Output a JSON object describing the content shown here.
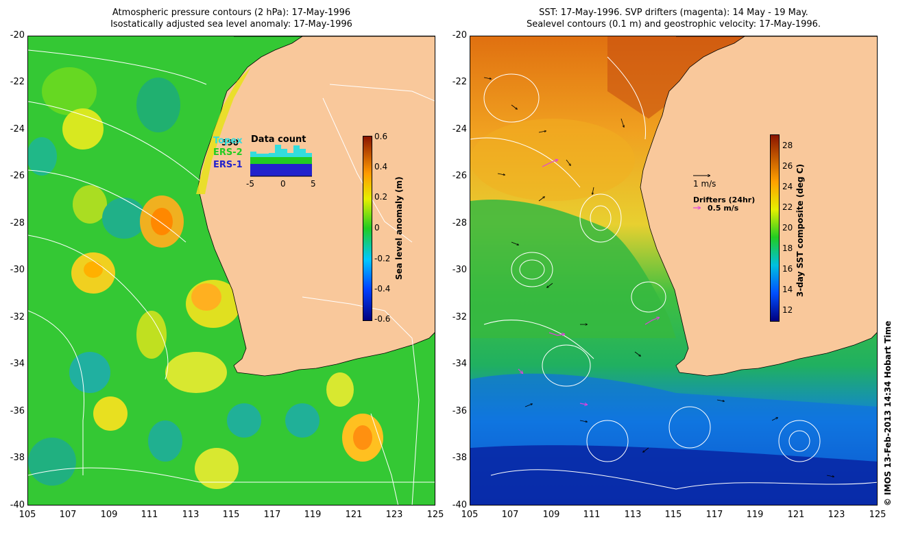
{
  "left_panel": {
    "title_line1": "Atmospheric pressure contours (2 hPa): 17-May-1996",
    "title_line2": "Isostatically adjusted sea level anomaly: 17-May-1996",
    "colorbar": {
      "label": "Sea level anomaly (m)",
      "ticks": [
        "0.6",
        "0.4",
        "0.2",
        "0",
        "-0.2",
        "-0.4",
        "-0.6"
      ],
      "range": [
        -0.6,
        0.6
      ]
    },
    "inset": {
      "title": "Data count",
      "count": "590",
      "legend": [
        {
          "name": "Topex",
          "color": "#33dddd"
        },
        {
          "name": "ERS-2",
          "color": "#22cc22"
        },
        {
          "name": "ERS-1",
          "color": "#2222cc"
        }
      ],
      "x_ticks": [
        "-5",
        "0",
        "5"
      ]
    }
  },
  "right_panel": {
    "title_line1": "SST: 17-May-1996. SVP drifters (magenta): 14 May - 19 May.",
    "title_line2": "Sealevel contours (0.1 m) and geostrophic velocity: 17-May-1996.",
    "colorbar": {
      "label": "3-day SST composite (deg C)",
      "ticks": [
        "28",
        "26",
        "24",
        "22",
        "20",
        "18",
        "16",
        "14",
        "12"
      ],
      "range": [
        11,
        29
      ]
    },
    "velocity_scale": "1 m/s",
    "drifters_label": "Drifters (24hr)",
    "drifters_scale": "0.5 m/s"
  },
  "axes": {
    "y_ticks": [
      "-20",
      "-22",
      "-24",
      "-26",
      "-28",
      "-30",
      "-32",
      "-34",
      "-36",
      "-38",
      "-40"
    ],
    "x_ticks": [
      "105",
      "107",
      "109",
      "111",
      "113",
      "115",
      "117",
      "119",
      "121",
      "123",
      "125"
    ],
    "lon_range": [
      105,
      125
    ],
    "lat_range": [
      -40,
      -20
    ]
  },
  "colors": {
    "land": "#f9c89b",
    "contour": "#ffffff"
  },
  "footer": "© IMOS 13-Feb-2013 14:34 Hobart Time"
}
